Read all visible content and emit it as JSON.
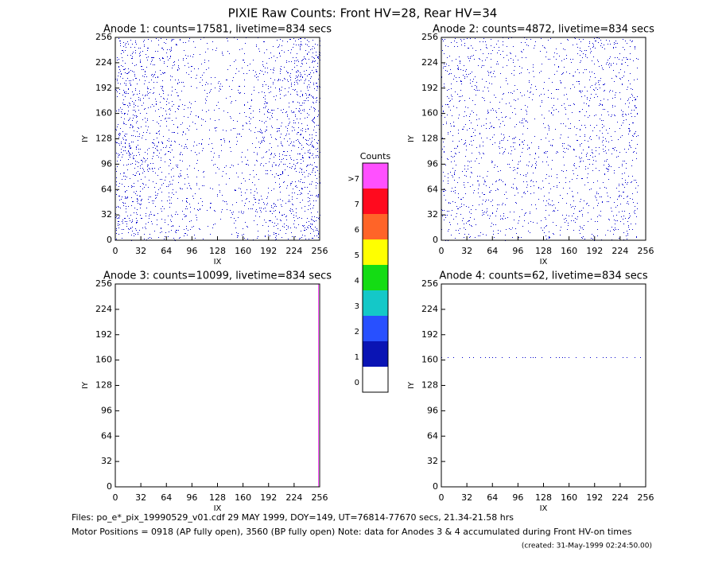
{
  "title": "PIXIE Raw Counts:  Front HV=28, Rear HV=34",
  "chart_data": [
    {
      "type": "heatmap",
      "title": "Anode 1: counts=17581, livetime=834 secs",
      "xlabel": "IX",
      "ylabel": "IY",
      "xlim": [
        0,
        256
      ],
      "ylim": [
        0,
        256
      ],
      "xticks": [
        0,
        32,
        64,
        96,
        128,
        160,
        192,
        224,
        256
      ],
      "yticks": [
        0,
        32,
        64,
        96,
        128,
        160,
        192,
        224,
        256
      ]
    },
    {
      "type": "heatmap",
      "title": "Anode 2: counts=4872, livetime=834 secs",
      "xlabel": "IX",
      "ylabel": "IY",
      "xlim": [
        0,
        256
      ],
      "ylim": [
        0,
        256
      ],
      "xticks": [
        0,
        32,
        64,
        96,
        128,
        160,
        192,
        224,
        256
      ],
      "yticks": [
        0,
        32,
        64,
        96,
        128,
        160,
        192,
        224,
        256
      ]
    },
    {
      "type": "heatmap",
      "title": "Anode 3: counts=10099, livetime=834 secs",
      "xlabel": "IX",
      "ylabel": "IY",
      "xlim": [
        0,
        256
      ],
      "ylim": [
        0,
        256
      ],
      "xticks": [
        0,
        32,
        64,
        96,
        128,
        160,
        192,
        224,
        256
      ],
      "yticks": [
        0,
        32,
        64,
        96,
        128,
        160,
        192,
        224,
        256
      ]
    },
    {
      "type": "heatmap",
      "title": "Anode 4: counts=62, livetime=834 secs",
      "xlabel": "IX",
      "ylabel": "IY",
      "xlim": [
        0,
        256
      ],
      "ylim": [
        0,
        256
      ],
      "xticks": [
        0,
        32,
        64,
        96,
        128,
        160,
        192,
        224,
        256
      ],
      "yticks": [
        0,
        32,
        64,
        96,
        128,
        160,
        192,
        224,
        256
      ]
    }
  ],
  "colorbar": {
    "title": "Counts",
    "ticks": [
      0,
      1,
      2,
      3,
      4,
      5,
      6,
      7,
      {
        "value": 8,
        "label": ">7"
      }
    ],
    "colors": [
      "#ffffff",
      "#0a14b4",
      "#2850ff",
      "#14c8c8",
      "#14dc14",
      "#ffff00",
      "#ff6428",
      "#ff0a1e",
      "#ff50ff"
    ]
  },
  "footer": [
    "Files: po_e*_pix_19990529_v01.cdf   29 MAY 1999, DOY=149, UT=76814-77670 secs, 21.34-21.58 hrs",
    "Motor Positions = 0918 (AP fully open), 3560 (BP fully open)   Note: data for Anodes 3 & 4 accumulated during Front HV-on times",
    "(created: 31-May-1999 02:24:50.00)"
  ]
}
